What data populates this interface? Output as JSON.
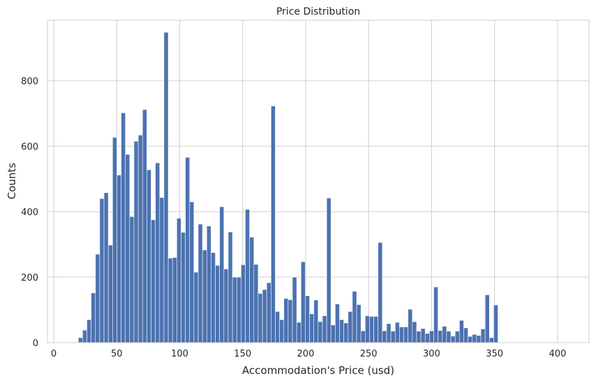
{
  "chart_data": {
    "type": "bar",
    "title": "Price Distribution",
    "xlabel": "Accommodation's Price (usd)",
    "ylabel": "Counts",
    "xlim": [
      -5,
      425
    ],
    "ylim": [
      0,
      985
    ],
    "xticks": [
      0,
      50,
      100,
      150,
      200,
      250,
      300,
      350,
      400
    ],
    "yticks": [
      0,
      200,
      400,
      600,
      800
    ],
    "grid": true,
    "bar_color": "#4c72b0",
    "bin_start": 19.5,
    "bin_width": 3.4,
    "values": [
      15,
      38,
      70,
      152,
      270,
      440,
      458,
      298,
      627,
      512,
      702,
      575,
      385,
      615,
      634,
      712,
      528,
      375,
      549,
      443,
      948,
      258,
      260,
      380,
      337,
      566,
      430,
      215,
      362,
      283,
      356,
      275,
      236,
      415,
      225,
      338,
      200,
      200,
      238,
      407,
      322,
      239,
      150,
      162,
      183,
      723,
      95,
      70,
      135,
      131,
      200,
      62,
      247,
      143,
      88,
      130,
      64,
      82,
      442,
      54,
      118,
      70,
      60,
      95,
      157,
      116,
      36,
      82,
      80,
      80,
      306,
      36,
      58,
      35,
      62,
      48,
      48,
      102,
      64,
      35,
      43,
      28,
      36,
      170,
      37,
      50,
      35,
      20,
      35,
      68,
      45,
      19,
      25,
      22,
      42,
      146,
      15,
      115
    ]
  }
}
